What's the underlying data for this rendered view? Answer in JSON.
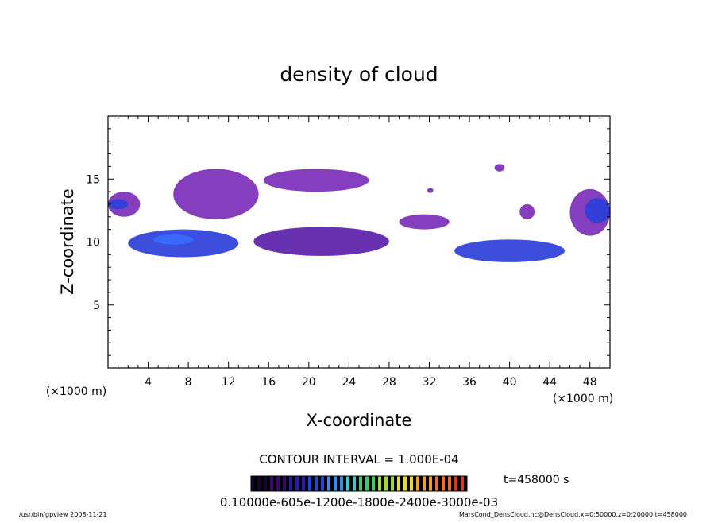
{
  "chart_data": {
    "type": "heatmap",
    "title": "density of cloud",
    "xlabel": "X-coordinate",
    "ylabel": "Z-coordinate",
    "x_unit_left": "(×1000 m)",
    "x_unit_right": "(×1000 m)",
    "xlim": [
      0,
      50
    ],
    "ylim": [
      0,
      20
    ],
    "x_ticks": [
      4,
      8,
      12,
      16,
      20,
      24,
      28,
      32,
      36,
      40,
      44,
      48
    ],
    "x_tick_labels": [
      "4",
      "8",
      "12",
      "16",
      "20",
      "24",
      "28",
      "32",
      "36",
      "40",
      "44",
      "48"
    ],
    "y_ticks": [
      5,
      10,
      15
    ],
    "y_tick_labels": [
      "5",
      "10",
      "15"
    ],
    "contour_interval": "CONTOUR INTERVAL = 1.000E-04",
    "time_label": "t=458000 s",
    "colorbar_labels": "0.10000e-605e-1200e-1800e-2400e-3000e-03",
    "colorbar_colors": [
      "#1a0033",
      "#3a0a6a",
      "#2a1aa8",
      "#2244dd",
      "#3a8ae8",
      "#3fc8c8",
      "#3acc6a",
      "#9adc3a",
      "#e8d832",
      "#eaa22a",
      "#e8702a",
      "#d83a2a"
    ],
    "level_colors": {
      "low": "#7b2fb8",
      "mid": "#5a1fa8",
      "high": "#2b3fd8",
      "peak": "#3a6aff"
    },
    "regions": [
      {
        "label": "left-edge",
        "x": [
          0.0,
          3.2
        ],
        "z": [
          12.0,
          14.0
        ],
        "level": "low"
      },
      {
        "label": "left-edge-core",
        "x": [
          0.0,
          2.0
        ],
        "z": [
          12.6,
          13.4
        ],
        "level": "high"
      },
      {
        "label": "upper-band-1",
        "x": [
          6.5,
          15.0
        ],
        "z": [
          11.8,
          15.8
        ],
        "level": "low"
      },
      {
        "label": "upper-band-2",
        "x": [
          15.5,
          26.0
        ],
        "z": [
          14.0,
          15.8
        ],
        "level": "low"
      },
      {
        "label": "lower-band-1",
        "x": [
          2.0,
          13.0
        ],
        "z": [
          8.8,
          11.0
        ],
        "level": "high"
      },
      {
        "label": "lower-band-1-core",
        "x": [
          4.5,
          8.5
        ],
        "z": [
          9.8,
          10.6
        ],
        "level": "peak"
      },
      {
        "label": "lower-band-2",
        "x": [
          14.5,
          28.0
        ],
        "z": [
          8.9,
          11.2
        ],
        "level": "mid"
      },
      {
        "label": "mid-strip",
        "x": [
          29.0,
          34.0
        ],
        "z": [
          11.0,
          12.2
        ],
        "level": "low"
      },
      {
        "label": "lower-band-3",
        "x": [
          34.5,
          45.5
        ],
        "z": [
          8.4,
          10.2
        ],
        "level": "high"
      },
      {
        "label": "right-edge",
        "x": [
          46.0,
          50.0
        ],
        "z": [
          10.5,
          14.2
        ],
        "level": "low"
      },
      {
        "label": "right-edge-core",
        "x": [
          47.5,
          50.0
        ],
        "z": [
          11.5,
          13.5
        ],
        "level": "high"
      },
      {
        "label": "speck-1",
        "x": [
          38.5,
          39.5
        ],
        "z": [
          15.6,
          16.2
        ],
        "level": "low"
      },
      {
        "label": "speck-2",
        "x": [
          31.8,
          32.4
        ],
        "z": [
          13.9,
          14.3
        ],
        "level": "low"
      },
      {
        "label": "speck-3",
        "x": [
          41.0,
          42.5
        ],
        "z": [
          11.8,
          13.0
        ],
        "level": "low"
      }
    ]
  },
  "footer": {
    "left": "/usr/bin/gpview  2008-11-21",
    "right": "MarsCond_DensCloud.nc@DensCloud,x=0:50000,z=0:20000,t=458000"
  }
}
